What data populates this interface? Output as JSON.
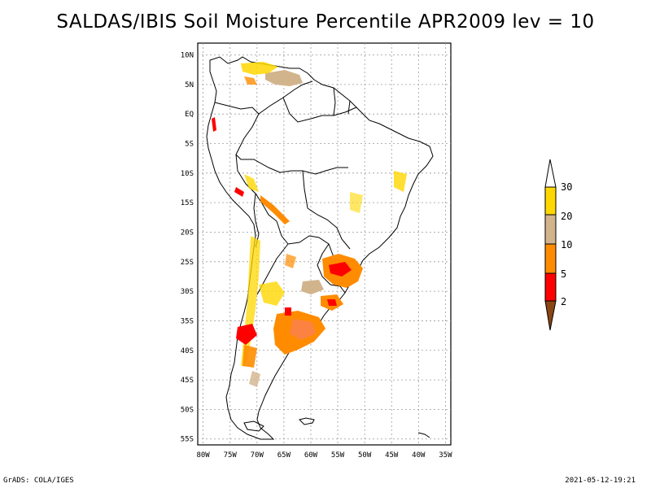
{
  "title": "SALDAS/IBIS Soil Moisture Percentile APR2009 lev = 10",
  "footer": {
    "left": "GrADS: COLA/IGES",
    "right": "2021-05-12-19:21"
  },
  "map": {
    "lon_ticks": [
      "80W",
      "75W",
      "70W",
      "65W",
      "60W",
      "55W",
      "50W",
      "45W",
      "40W",
      "35W"
    ],
    "lat_ticks": [
      "10N",
      "5N",
      "EQ",
      "5S",
      "10S",
      "15S",
      "20S",
      "25S",
      "30S",
      "35S",
      "40S",
      "45S",
      "50S",
      "55S"
    ],
    "lon_range": [
      -81,
      -34
    ],
    "lat_range": [
      -56,
      12
    ],
    "grid": true
  },
  "colorbar": {
    "labels": [
      "2",
      "5",
      "10",
      "20",
      "30"
    ],
    "colors": [
      "#8b4513",
      "#ff0000",
      "#ff8c00",
      "#d2b48c",
      "#ffd700",
      "#ffffff"
    ]
  }
}
